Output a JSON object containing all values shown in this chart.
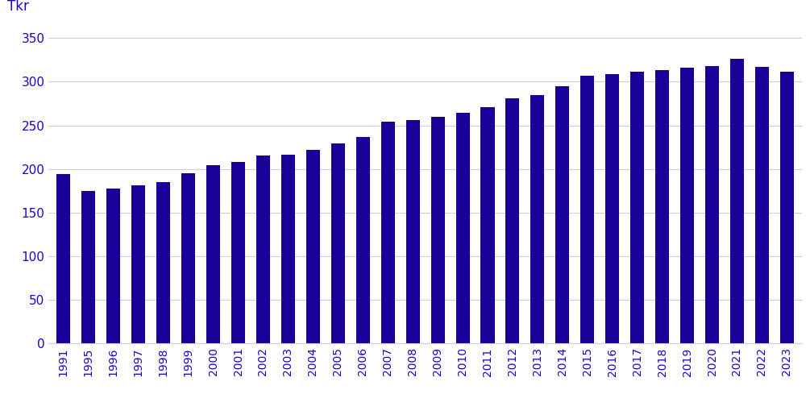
{
  "years": [
    "1991",
    "1995",
    "1996",
    "1997",
    "1998",
    "1999",
    "2000",
    "2001",
    "2002",
    "2003",
    "2004",
    "2005",
    "2006",
    "2007",
    "2008",
    "2009",
    "2010",
    "2011",
    "2012",
    "2013",
    "2014",
    "2015",
    "2016",
    "2017",
    "2018",
    "2019",
    "2020",
    "2021",
    "2022",
    "2023"
  ],
  "values": [
    194,
    175,
    178,
    181,
    185,
    195,
    204,
    208,
    215,
    216,
    222,
    229,
    237,
    254,
    256,
    260,
    264,
    271,
    281,
    285,
    295,
    307,
    309,
    311,
    313,
    316,
    318,
    326,
    317,
    311
  ],
  "bar_color": "#1a0099",
  "ylabel": "Tkr",
  "ylim": [
    0,
    360
  ],
  "yticks": [
    0,
    50,
    100,
    150,
    200,
    250,
    300,
    350
  ],
  "grid_color": "#ccccee",
  "text_color": "#2200cc",
  "background_color": "#ffffff"
}
